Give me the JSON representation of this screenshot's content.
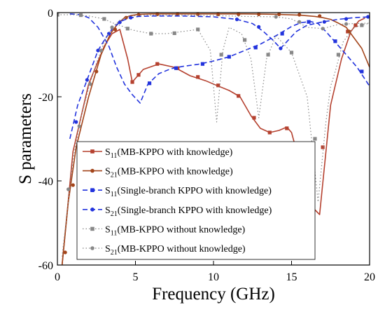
{
  "chart_data": {
    "type": "line",
    "xlabel": "Frequency (GHz)",
    "ylabel": "S parameters",
    "xlim": [
      0,
      20
    ],
    "ylim": [
      -60,
      0
    ],
    "xticks": [
      0,
      5,
      10,
      15,
      20
    ],
    "yticks": [
      0,
      -20,
      -40,
      -60
    ],
    "xtick_labels": [
      "0",
      "5",
      "10",
      "15",
      "20"
    ],
    "ytick_labels": [
      "0",
      "-20",
      "-40",
      "-60"
    ],
    "grid": false,
    "legend_position": "bottom-right",
    "series": [
      {
        "name": "S11(MB-KPPO with knowledge)",
        "label_main": "S",
        "label_sub": "11",
        "label_rest": "(MB-KPPO with knowledge)",
        "color": "#b5412f",
        "dash": "solid",
        "marker": "square",
        "x": [
          0.3,
          1.0,
          2.0,
          3.0,
          3.5,
          4.0,
          4.5,
          4.8,
          5.5,
          6.5,
          7.5,
          8.5,
          9.5,
          10.2,
          11.0,
          11.7,
          12.4,
          13.0,
          13.6,
          14.2,
          14.7,
          15.0,
          15.4,
          16.0,
          16.8,
          17.5,
          18.2,
          18.8,
          19.3,
          19.7
        ],
        "y": [
          -60,
          -33,
          -17,
          -8,
          -5,
          -4,
          -11,
          -16.5,
          -13.5,
          -12.2,
          -13,
          -15,
          -16.2,
          -17.3,
          -18.5,
          -20,
          -24.5,
          -27.5,
          -28.5,
          -28,
          -27.2,
          -28.5,
          -34,
          -45,
          -48,
          -22,
          -11,
          -4.5,
          -2,
          -1.3
        ],
        "markers_x": [
          4.8,
          5.2,
          6.4,
          7.7,
          9.0,
          10.3,
          11.6,
          12.6,
          13.6,
          14.7,
          17.0,
          18.6,
          19.1
        ],
        "markers_y": [
          -16.5,
          -14.8,
          -12.2,
          -13.2,
          -15.3,
          -17.3,
          -19.8,
          -25,
          -28.5,
          -27.5,
          -32,
          -4.5,
          -3
        ]
      },
      {
        "name": "S21(MB-KPPO with knowledge)",
        "label_main": "S",
        "label_sub": "21",
        "label_rest": "(MB-KPPO with knowledge)",
        "color": "#a3451b",
        "dash": "solid",
        "marker": "circle",
        "x": [
          0.3,
          0.7,
          1.2,
          2.0,
          2.8,
          3.4,
          3.9,
          4.3,
          4.7,
          5.2,
          6.0,
          8.0,
          10.0,
          12.0,
          14.0,
          15.5,
          16.5,
          17.0,
          17.5,
          18.0,
          18.5,
          19.0,
          19.5,
          20.0
        ],
        "y": [
          -60,
          -45,
          -32,
          -20,
          -10,
          -5,
          -2.5,
          -1.2,
          -0.7,
          -0.4,
          -0.3,
          -0.3,
          -0.3,
          -0.3,
          -0.4,
          -0.6,
          -0.9,
          -1.2,
          -1.6,
          -2.5,
          -3.5,
          -6,
          -8.5,
          -13
        ],
        "markers_x": [
          0.5,
          1.0,
          2.5,
          3.7,
          4.4,
          5.2,
          6.4,
          7.7,
          9.0,
          10.3,
          11.6,
          12.9,
          14.2,
          15.5,
          16.8,
          18.7
        ],
        "markers_y": [
          -57,
          -41,
          -14,
          -4,
          -1.2,
          -0.5,
          -0.4,
          -0.4,
          -0.4,
          -0.4,
          -0.4,
          -0.4,
          -0.4,
          -0.5,
          -0.8,
          -4.5
        ]
      },
      {
        "name": "S11(Single-branch KPPO with knowledge)",
        "label_main": "S",
        "label_sub": "11",
        "label_rest": "(Single-branch KPPO with knowledge)",
        "color": "#2233dd",
        "dash": "dash",
        "marker": "square",
        "x": [
          0.8,
          1.5,
          2.0,
          2.6,
          3.3,
          3.8,
          4.3,
          4.8,
          5.3,
          5.8,
          6.5,
          7.3,
          8.0,
          9.0,
          10.0,
          11.0,
          12.0,
          13.0,
          14.0,
          15.0,
          15.6,
          16.2,
          16.7,
          17.2,
          17.8,
          18.5,
          19.2,
          20.0
        ],
        "y": [
          -0.3,
          -0.5,
          -1.2,
          -3.5,
          -8,
          -13,
          -17,
          -19.5,
          -21.5,
          -17,
          -14.5,
          -13.3,
          -12.8,
          -12.3,
          -11.5,
          -10.5,
          -9,
          -7.5,
          -5.5,
          -3.3,
          -2.4,
          -2.1,
          -2.6,
          -4.5,
          -7,
          -10,
          -13,
          -17.5
        ],
        "markers_x": [
          5.9,
          7.6,
          9.3,
          11.0,
          12.7,
          14.4,
          16.1,
          17.8,
          19.5
        ],
        "markers_y": [
          -16.8,
          -13.2,
          -12.2,
          -10.5,
          -8.3,
          -5,
          -2.2,
          -6.8,
          -14
        ]
      },
      {
        "name": "S21(Single-branch KPPO with knowledge)",
        "label_main": "S",
        "label_sub": "21",
        "label_rest": "(Single-branch KPPO with knowledge)",
        "color": "#2233dd",
        "dash": "dash",
        "marker": "circle",
        "x": [
          0.8,
          1.3,
          2.0,
          2.6,
          3.1,
          3.6,
          4.1,
          4.6,
          5.2,
          6.0,
          8.0,
          10.0,
          11.5,
          12.5,
          13.2,
          13.8,
          14.3,
          14.8,
          15.3,
          16.0,
          17.0,
          18.0,
          19.0,
          20.0
        ],
        "y": [
          -30,
          -22,
          -15,
          -9,
          -6,
          -3.5,
          -2,
          -1.3,
          -0.9,
          -0.8,
          -0.8,
          -1.0,
          -1.6,
          -2.6,
          -4.5,
          -6.5,
          -8.5,
          -6.5,
          -4.5,
          -3.0,
          -2.2,
          -1.6,
          -1.2,
          -1.0
        ],
        "markers_x": [
          1.2,
          1.9,
          2.6,
          3.3,
          4.0,
          4.7,
          11.5,
          12.9,
          14.3,
          17.1,
          18.5,
          19.9
        ],
        "markers_y": [
          -26,
          -16,
          -9,
          -5,
          -2.3,
          -1.2,
          -1.6,
          -3.4,
          -8.5,
          -2.2,
          -1.5,
          -1.0
        ]
      },
      {
        "name": "S11(MB-KPPO without knowledge)",
        "label_main": "S",
        "label_sub": "11",
        "label_rest": "(MB-KPPO without knowledge)",
        "color": "#888888",
        "dash": "dot",
        "marker": "square",
        "x": [
          0.0,
          1.0,
          2.0,
          3.0,
          3.5,
          4.0,
          4.5,
          5.0,
          6.0,
          7.0,
          8.0,
          9.0,
          9.8,
          10.2,
          10.6,
          11.0,
          11.8,
          12.4,
          12.9,
          13.4,
          14.0,
          15.0,
          16.0,
          16.7,
          17.2,
          17.5,
          17.8,
          18.3,
          19.0,
          20.0
        ],
        "y": [
          -0.5,
          -0.5,
          -0.8,
          -1.5,
          -2.4,
          -3,
          -3.8,
          -4.3,
          -5,
          -5,
          -4.5,
          -4,
          -9,
          -26,
          -9,
          -3.5,
          -5,
          -11,
          -25,
          -11,
          -5.5,
          -9.5,
          -20,
          -45,
          -26,
          -17.5,
          -14,
          -7,
          -3.5,
          -2.5
        ],
        "markers_x": [
          0.0,
          1.5,
          3.0,
          4.5,
          6.0,
          7.5,
          9.0,
          10.5,
          12.0,
          13.5,
          15.0,
          16.5,
          18.0,
          19.5
        ],
        "markers_y": [
          -0.5,
          -0.6,
          -1.5,
          -3.8,
          -5,
          -4.9,
          -4,
          -10,
          -6.5,
          -10,
          -9.5,
          -30,
          -10,
          -3
        ]
      },
      {
        "name": "S21(MB-KPPO without knowledge)",
        "label_main": "S",
        "label_sub": "21",
        "label_rest": "(MB-KPPO without knowledge)",
        "color": "#888888",
        "dash": "dot",
        "marker": "circle",
        "x": [
          0.3,
          1.0,
          1.5,
          2.0,
          2.5,
          3.0,
          3.5,
          4.0,
          4.5,
          5.0,
          6.0,
          8.0,
          10.0,
          12.0,
          14.0,
          15.0,
          16.0,
          17.0,
          18.0,
          19.0,
          20.0
        ],
        "y": [
          -58,
          -35,
          -25,
          -18,
          -12,
          -7,
          -3.5,
          -1.8,
          -1.0,
          -0.7,
          -0.6,
          -0.6,
          -0.7,
          -0.9,
          -1.0,
          -1.5,
          -3.5,
          -3.8,
          -2.8,
          -2.6,
          -2.5
        ],
        "markers_x": [
          0.7,
          1.4,
          2.1,
          2.8,
          3.5,
          14.0,
          15.5,
          17.0,
          18.5
        ],
        "markers_y": [
          -42,
          -27,
          -17,
          -9,
          -3.5,
          -1.0,
          -2.2,
          -3.8,
          -2.7
        ]
      }
    ]
  }
}
